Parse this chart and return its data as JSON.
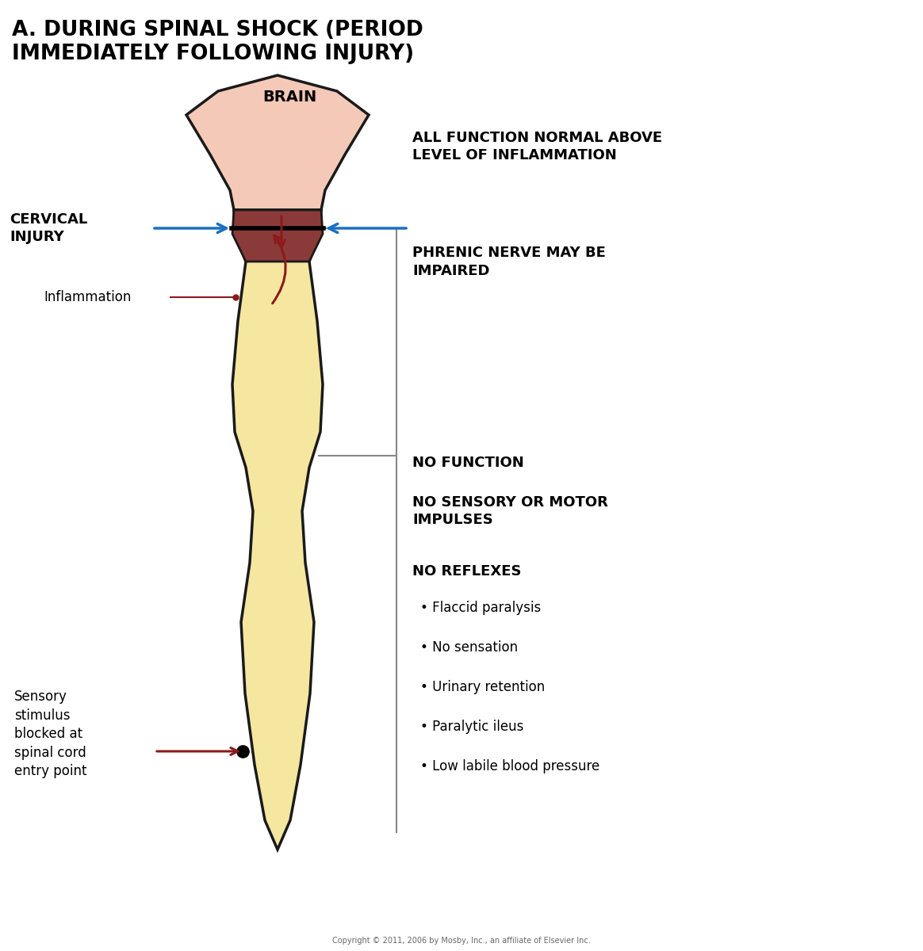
{
  "title": "A. DURING SPINAL SHOCK (PERIOD\nIMMEDIATELY FOLLOWING INJURY)",
  "bg_color": "#ffffff",
  "spine_color": "#F5E6A0",
  "spine_outline": "#1a1a1a",
  "injury_color": "#8B3A3A",
  "brain_color": "#F5C9B8",
  "arrow_blue": "#1a6fc4",
  "arrow_red": "#8B1a1a",
  "text_color": "#000000",
  "copyright": "Copyright © 2011, 2006 by Mosby, Inc., an affiliate of Elsevier Inc.",
  "labels": {
    "brain": "BRAIN",
    "cervical_injury": "CERVICAL\nINJURY",
    "inflammation": "Inflammation",
    "all_function": "ALL FUNCTION NORMAL ABOVE\nLEVEL OF INFLAMMATION",
    "phrenic": "PHRENIC NERVE MAY BE\nIMPAIRED",
    "no_function": "NO FUNCTION",
    "no_sensory": "NO SENSORY OR MOTOR\nIMPULSES",
    "no_reflexes": "NO REFLEXES",
    "bullet1": "• Flaccid paralysis",
    "bullet2": "• No sensation",
    "bullet3": "• Urinary retention",
    "bullet4": "• Paralytic ileus",
    "bullet5": "• Low labile blood pressure",
    "sensory": "Sensory\nstimulus\nblocked at\nspinal cord\nentry point"
  }
}
